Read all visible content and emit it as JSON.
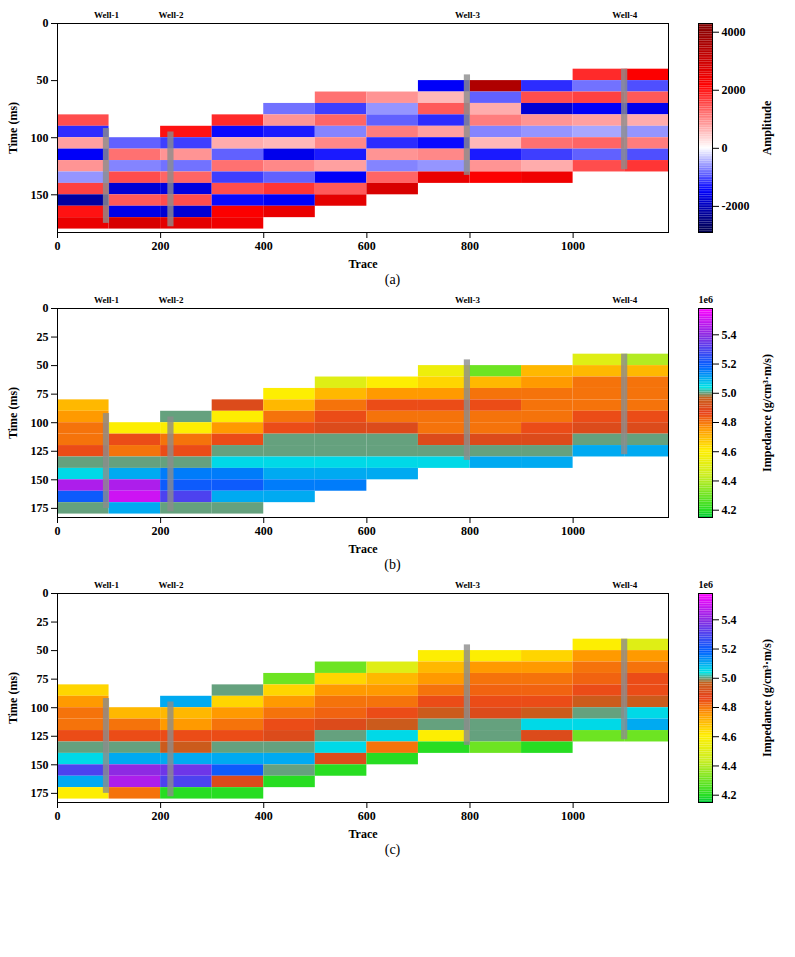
{
  "chart_data": [
    {
      "type": "seismic",
      "caption": "(a)",
      "x_label": "Trace",
      "y_label": "Time (ms)",
      "xlim": [
        0,
        1185
      ],
      "xticks": [
        0,
        200,
        400,
        600,
        800,
        1000
      ],
      "ylim": [
        0,
        183
      ],
      "yticks": [
        0,
        50,
        100,
        150
      ],
      "trace_edges": [
        0,
        100,
        200,
        300,
        400,
        500,
        600,
        700,
        800,
        900,
        1000,
        1100,
        1185
      ],
      "time_edges": [
        40,
        50,
        60,
        70,
        80,
        90,
        100,
        110,
        120,
        130,
        140,
        150,
        160,
        170,
        180
      ],
      "cells": [
        [
          null,
          null,
          null,
          null,
          null,
          null,
          null,
          null,
          null,
          null,
          1800,
          2200
        ],
        [
          null,
          null,
          null,
          null,
          null,
          null,
          null,
          -1500,
          3500,
          -1200,
          -800,
          -1000
        ],
        [
          null,
          null,
          null,
          null,
          null,
          1200,
          900,
          600,
          -900,
          1500,
          1600,
          1400
        ],
        [
          null,
          null,
          null,
          null,
          -800,
          -1100,
          -600,
          1400,
          700,
          -1800,
          -1500,
          -1600
        ],
        [
          1500,
          null,
          null,
          1800,
          900,
          1300,
          -900,
          -1200,
          1100,
          900,
          800,
          700
        ],
        [
          -1200,
          null,
          2000,
          -1400,
          -1300,
          -700,
          1100,
          800,
          -700,
          -600,
          -500,
          -600
        ],
        [
          800,
          -900,
          -1100,
          700,
          600,
          1000,
          -1200,
          -1400,
          600,
          1200,
          1300,
          1100
        ],
        [
          -1500,
          1200,
          900,
          -900,
          -1600,
          -1300,
          900,
          1000,
          -1300,
          -1100,
          -900,
          -1000
        ],
        [
          900,
          -700,
          -800,
          1200,
          1000,
          800,
          -700,
          -600,
          900,
          700,
          1500,
          1700
        ],
        [
          -600,
          1500,
          1300,
          -1100,
          -900,
          -1500,
          1300,
          2500,
          2200,
          2400,
          null,
          null
        ],
        [
          1600,
          -1800,
          -1700,
          1500,
          1700,
          1400,
          2800,
          null,
          null,
          null,
          null,
          null
        ],
        [
          -2200,
          1400,
          1500,
          -1400,
          -1500,
          2600,
          null,
          null,
          null,
          null,
          null,
          null
        ],
        [
          2000,
          -1600,
          -1800,
          2200,
          2500,
          null,
          null,
          null,
          null,
          null,
          null,
          null
        ],
        [
          2500,
          2800,
          2600,
          2400,
          null,
          null,
          null,
          null,
          null,
          null,
          null,
          null
        ]
      ],
      "colorbar": {
        "label": "Amplitude",
        "range": [
          -2900,
          4300
        ],
        "ticks": [
          -2000,
          0,
          2000,
          4000
        ]
      },
      "wells": [
        {
          "name": "Well-1",
          "trace": 95,
          "time_range": [
            92,
            175
          ]
        },
        {
          "name": "Well-2",
          "trace": 220,
          "time_range": [
            95,
            178
          ]
        },
        {
          "name": "Well-3",
          "trace": 795,
          "time_range": [
            45,
            133
          ]
        },
        {
          "name": "Well-4",
          "trace": 1100,
          "time_range": [
            40,
            128
          ]
        }
      ]
    },
    {
      "type": "heatmap",
      "caption": "(b)",
      "x_label": "Trace",
      "y_label": "Time (ms)",
      "xlim": [
        0,
        1185
      ],
      "xticks": [
        0,
        200,
        400,
        600,
        800,
        1000
      ],
      "ylim": [
        0,
        183
      ],
      "yticks": [
        0,
        25,
        50,
        75,
        100,
        125,
        150,
        175
      ],
      "trace_edges": [
        0,
        100,
        200,
        300,
        400,
        500,
        600,
        700,
        800,
        900,
        1000,
        1100,
        1185
      ],
      "time_edges": [
        40,
        50,
        60,
        70,
        80,
        90,
        100,
        110,
        120,
        130,
        140,
        150,
        160,
        170,
        180
      ],
      "cells": [
        [
          null,
          null,
          null,
          null,
          null,
          null,
          null,
          null,
          null,
          null,
          4.5,
          4.4
        ],
        [
          null,
          null,
          null,
          null,
          null,
          null,
          null,
          4.55,
          4.3,
          4.7,
          4.7,
          4.7
        ],
        [
          null,
          null,
          null,
          null,
          null,
          4.5,
          4.6,
          4.65,
          4.7,
          4.75,
          4.8,
          4.8
        ],
        [
          null,
          null,
          null,
          null,
          4.6,
          4.7,
          4.75,
          4.75,
          4.8,
          4.8,
          4.8,
          4.8
        ],
        [
          4.7,
          null,
          null,
          4.9,
          4.7,
          4.8,
          4.85,
          4.85,
          4.85,
          4.8,
          4.8,
          4.8
        ],
        [
          4.75,
          null,
          5.0,
          4.6,
          4.8,
          4.85,
          4.8,
          4.8,
          4.8,
          4.8,
          4.85,
          4.85
        ],
        [
          4.8,
          4.6,
          4.6,
          4.75,
          4.85,
          4.9,
          4.9,
          4.8,
          4.8,
          4.85,
          4.9,
          4.9
        ],
        [
          4.8,
          4.85,
          4.8,
          4.85,
          5.0,
          5.0,
          5.0,
          4.9,
          4.9,
          4.9,
          5.0,
          5.0
        ],
        [
          4.85,
          4.8,
          4.85,
          5.0,
          5.0,
          5.0,
          5.0,
          5.0,
          5.0,
          5.0,
          5.1,
          5.1
        ],
        [
          5.0,
          5.0,
          5.0,
          5.05,
          5.05,
          5.05,
          5.05,
          5.05,
          5.1,
          5.1,
          null,
          null
        ],
        [
          5.05,
          5.1,
          5.15,
          5.15,
          5.1,
          5.1,
          5.1,
          null,
          null,
          null,
          null,
          null
        ],
        [
          5.45,
          5.45,
          5.2,
          5.2,
          5.15,
          5.15,
          null,
          null,
          null,
          null,
          null,
          null
        ],
        [
          5.2,
          5.5,
          5.3,
          5.1,
          5.1,
          null,
          null,
          null,
          null,
          null,
          null,
          null
        ],
        [
          5.0,
          5.1,
          5.0,
          5.0,
          null,
          null,
          null,
          null,
          null,
          null,
          null,
          null
        ]
      ],
      "colorbar": {
        "label": "Impedance (g/cm³·m/s)",
        "scale_label": "1e6",
        "range": [
          4.15,
          5.58
        ],
        "ticks": [
          4.2,
          4.4,
          4.6,
          4.8,
          {
            "value": 5,
            "label": "5.0"
          },
          5.2,
          5.4
        ]
      },
      "wells": [
        {
          "name": "Well-1",
          "trace": 95,
          "time_range": [
            92,
            175
          ]
        },
        {
          "name": "Well-2",
          "trace": 220,
          "time_range": [
            95,
            178
          ]
        },
        {
          "name": "Well-3",
          "trace": 795,
          "time_range": [
            45,
            133
          ]
        },
        {
          "name": "Well-4",
          "trace": 1100,
          "time_range": [
            40,
            128
          ]
        }
      ]
    },
    {
      "type": "heatmap",
      "caption": "(c)",
      "x_label": "Trace",
      "y_label": "Time (ms)",
      "xlim": [
        0,
        1185
      ],
      "xticks": [
        0,
        200,
        400,
        600,
        800,
        1000
      ],
      "ylim": [
        0,
        183
      ],
      "yticks": [
        0,
        25,
        50,
        75,
        100,
        125,
        150,
        175
      ],
      "trace_edges": [
        0,
        100,
        200,
        300,
        400,
        500,
        600,
        700,
        800,
        900,
        1000,
        1100,
        1185
      ],
      "time_edges": [
        40,
        50,
        60,
        70,
        80,
        90,
        100,
        110,
        120,
        130,
        140,
        150,
        160,
        170,
        180
      ],
      "cells": [
        [
          null,
          null,
          null,
          null,
          null,
          null,
          null,
          null,
          null,
          null,
          4.6,
          4.5
        ],
        [
          null,
          null,
          null,
          null,
          null,
          null,
          null,
          4.6,
          4.6,
          4.65,
          4.75,
          4.75
        ],
        [
          null,
          null,
          null,
          null,
          null,
          4.3,
          4.5,
          4.7,
          4.75,
          4.75,
          4.8,
          4.8
        ],
        [
          null,
          null,
          null,
          null,
          4.3,
          4.65,
          4.7,
          4.75,
          4.8,
          4.8,
          4.82,
          4.85
        ],
        [
          4.65,
          null,
          null,
          5.0,
          4.65,
          4.75,
          4.75,
          4.8,
          4.82,
          4.82,
          4.85,
          4.85
        ],
        [
          4.75,
          null,
          5.1,
          4.65,
          4.75,
          4.8,
          4.8,
          4.85,
          4.85,
          4.85,
          4.95,
          4.95
        ],
        [
          4.8,
          4.7,
          4.7,
          4.75,
          4.8,
          4.82,
          4.85,
          4.95,
          4.9,
          4.95,
          5.0,
          5.05
        ],
        [
          4.8,
          4.8,
          4.75,
          4.8,
          4.85,
          4.9,
          4.95,
          5.0,
          5.0,
          5.05,
          5.05,
          5.1
        ],
        [
          4.85,
          4.85,
          4.85,
          4.85,
          4.9,
          5.0,
          5.05,
          4.6,
          5.0,
          4.9,
          4.3,
          4.3
        ],
        [
          5.0,
          5.0,
          4.95,
          5.0,
          5.0,
          5.05,
          4.8,
          4.2,
          4.3,
          4.2,
          null,
          null
        ],
        [
          5.05,
          5.1,
          5.1,
          5.1,
          5.1,
          4.9,
          4.2,
          null,
          null,
          null,
          null,
          null
        ],
        [
          5.3,
          5.4,
          5.35,
          5.2,
          5.0,
          4.2,
          null,
          null,
          null,
          null,
          null,
          null
        ],
        [
          5.1,
          5.45,
          5.3,
          4.9,
          4.2,
          null,
          null,
          null,
          null,
          null,
          null,
          null
        ],
        [
          4.6,
          4.8,
          4.2,
          4.2,
          null,
          null,
          null,
          null,
          null,
          null,
          null,
          null
        ]
      ],
      "colorbar": {
        "label": "Impedance (g/cm³·m/s)",
        "scale_label": "1e6",
        "range": [
          4.15,
          5.58
        ],
        "ticks": [
          4.2,
          4.4,
          4.6,
          4.8,
          {
            "value": 5,
            "label": "5.0"
          },
          5.2,
          5.4
        ]
      },
      "wells": [
        {
          "name": "Well-1",
          "trace": 95,
          "time_range": [
            92,
            175
          ]
        },
        {
          "name": "Well-2",
          "trace": 220,
          "time_range": [
            95,
            178
          ]
        },
        {
          "name": "Well-3",
          "trace": 795,
          "time_range": [
            45,
            133
          ]
        },
        {
          "name": "Well-4",
          "trace": 1100,
          "time_range": [
            40,
            128
          ]
        }
      ]
    }
  ]
}
